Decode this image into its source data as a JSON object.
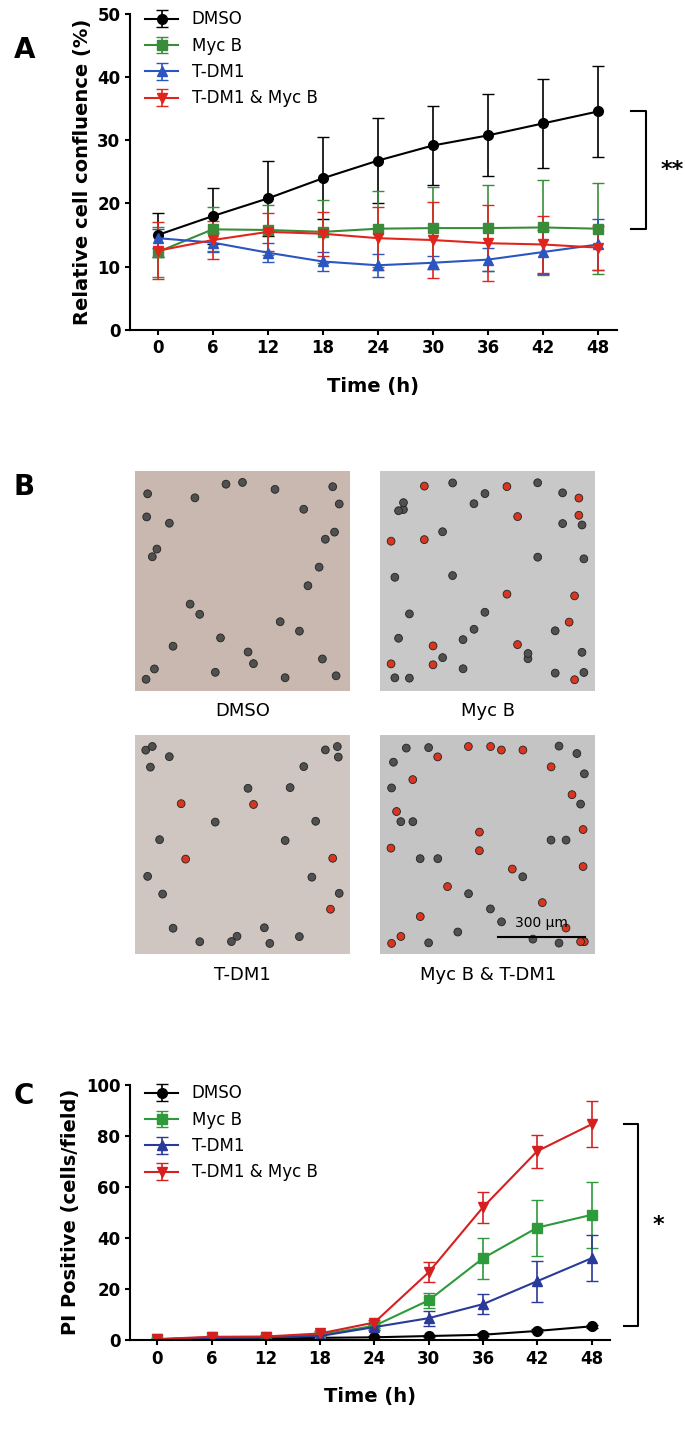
{
  "chart_data": [
    {
      "type": "line",
      "panel_label": "A",
      "x_label": "Time (h)",
      "y_label": "Relative cell confluence (%)",
      "x": [
        0,
        6,
        12,
        18,
        24,
        30,
        36,
        42,
        48
      ],
      "xlim": [
        -3,
        50
      ],
      "xticks": [
        0,
        6,
        12,
        18,
        24,
        30,
        36,
        42,
        48
      ],
      "ylim": [
        0,
        50
      ],
      "yticks": [
        0,
        10,
        20,
        30,
        40,
        50
      ],
      "legend": "upper left",
      "annotations": [
        "**"
      ],
      "series": [
        {
          "name": "DMSO",
          "color": "#000000",
          "marker": "circle",
          "values": [
            15,
            18,
            20.8,
            24,
            26.8,
            29.2,
            30.8,
            32.7,
            34.6
          ],
          "error": [
            3.5,
            4.5,
            6,
            6.5,
            6.8,
            6.2,
            6.5,
            7,
            7.2
          ]
        },
        {
          "name": "Myc B",
          "color": "#3a8c3a",
          "marker": "square",
          "values": [
            12.3,
            15.9,
            15.8,
            15.5,
            16,
            16.1,
            16.1,
            16.2,
            16
          ],
          "error": [
            4,
            3.5,
            4,
            5,
            6,
            6.5,
            6.8,
            7.5,
            7.2
          ]
        },
        {
          "name": "T-DM1",
          "color": "#2b55c0",
          "marker": "triangle_up",
          "values": [
            14.5,
            13.8,
            12.2,
            10.8,
            10.2,
            10.6,
            11.1,
            12.3,
            13.5
          ],
          "error": [
            1.5,
            1.5,
            1.5,
            1.5,
            1.8,
            1,
            1.8,
            3.5,
            4
          ]
        },
        {
          "name": "T-DM1 & Myc B",
          "color": "#e0261c",
          "marker": "triangle_down",
          "values": [
            12.5,
            14.2,
            15.5,
            15.2,
            14.5,
            14.2,
            13.7,
            13.5,
            13
          ],
          "error": [
            4.5,
            3,
            3,
            3.5,
            5,
            6,
            6,
            4.5,
            3.5
          ]
        }
      ]
    },
    {
      "type": "line",
      "panel_label": "C",
      "x_label": "Time (h)",
      "y_label": "PI Positive (cells/field)",
      "x": [
        0,
        6,
        12,
        18,
        24,
        30,
        36,
        42,
        48
      ],
      "xlim": [
        -3,
        50
      ],
      "xticks": [
        0,
        6,
        12,
        18,
        24,
        30,
        36,
        42,
        48
      ],
      "ylim": [
        0,
        100
      ],
      "yticks": [
        0,
        20,
        40,
        60,
        80,
        100
      ],
      "legend": "upper left",
      "annotations": [
        "*"
      ],
      "series": [
        {
          "name": "DMSO",
          "color": "#000000",
          "marker": "circle",
          "values": [
            0,
            0.3,
            0.5,
            0.8,
            1,
            1.5,
            2,
            3.5,
            5.3
          ],
          "error": [
            0.3,
            0.3,
            0.3,
            0.4,
            0.5,
            0.5,
            0.6,
            0.6,
            0.7
          ]
        },
        {
          "name": "Myc B",
          "color": "#2e9a3c",
          "marker": "square",
          "values": [
            0.2,
            1,
            1,
            2,
            5.5,
            15.5,
            32,
            44,
            49
          ],
          "error": [
            0.3,
            0.5,
            0.5,
            0.8,
            1,
            3,
            8,
            11,
            13
          ]
        },
        {
          "name": "T-DM1",
          "color": "#2a3a9a",
          "marker": "triangle_up",
          "values": [
            0.2,
            0.8,
            1,
            1.5,
            5,
            8.5,
            14,
            23,
            32
          ],
          "error": [
            0.3,
            0.5,
            0.5,
            0.8,
            1,
            3,
            4,
            8,
            9
          ]
        },
        {
          "name": "T-DM1 & Myc B",
          "color": "#d62020",
          "marker": "triangle_down",
          "values": [
            0.3,
            1.2,
            1.3,
            2.5,
            6.8,
            26.5,
            52,
            74,
            84.5
          ],
          "error": [
            0.3,
            0.5,
            0.5,
            0.8,
            1,
            4,
            6,
            6.5,
            9
          ]
        }
      ]
    }
  ],
  "panel_b": {
    "panel_label": "B",
    "images": [
      {
        "caption": "DMSO"
      },
      {
        "caption": "Myc B"
      },
      {
        "caption": "T-DM1"
      },
      {
        "caption": "Myc B & T-DM1"
      }
    ],
    "scale_bar": "300 µm"
  }
}
